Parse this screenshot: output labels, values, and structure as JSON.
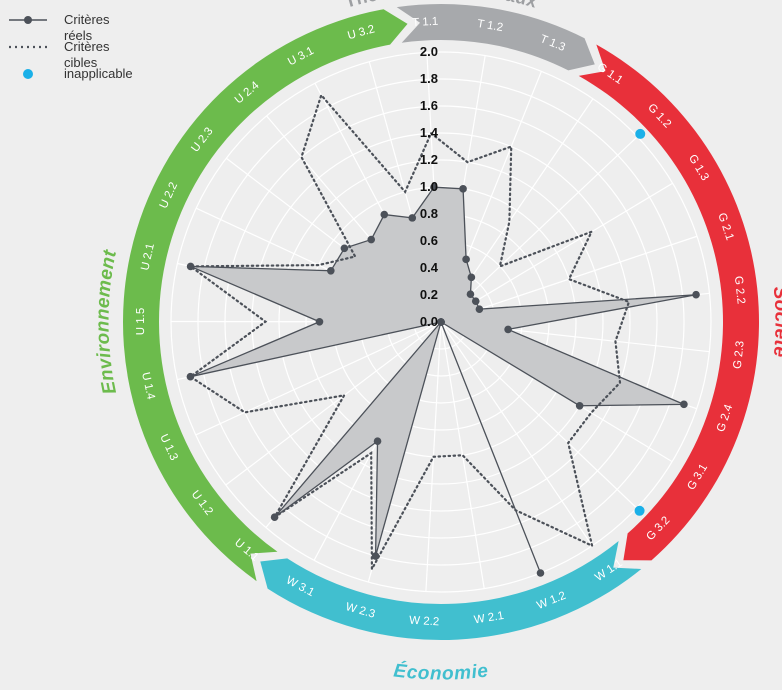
{
  "legend": {
    "actual": "Critères réels",
    "target": "Critères cibles",
    "na": "inapplicable"
  },
  "sections": [
    {
      "id": "T",
      "title": "Thèmes transversaux",
      "color": "#a7a9ac"
    },
    {
      "id": "G",
      "title": "Societe",
      "color": "#e8303a"
    },
    {
      "id": "W",
      "title": "Économie",
      "color": "#41bfcf"
    },
    {
      "id": "U",
      "title": "Environnement",
      "color": "#6cbb4c"
    }
  ],
  "colors": {
    "actual_line": "#4c5159",
    "actual_fill": "#c8c9cb",
    "target_line": "#4c5159",
    "na_dot": "#1ab0e8",
    "grid": "#ffffff"
  },
  "chart_data": {
    "type": "radar",
    "rlim": [
      0,
      2.0
    ],
    "r_ticks": [
      "0.0",
      "0.2",
      "0.4",
      "0.6",
      "0.8",
      "1.0",
      "1.2",
      "1.4",
      "1.6",
      "1.8",
      "2.0"
    ],
    "grid": true,
    "legend_position": "top-left",
    "categories": [
      "T 1.1",
      "T 1.2",
      "T 1.3",
      "G 1.1",
      "G 1.2",
      "G 1.3",
      "G 2.1",
      "G 2.2",
      "G 2.3",
      "G 2.4",
      "G 3.1",
      "G 3.2",
      "W 1.1",
      "W 1.2",
      "W 2.1",
      "W 2.2",
      "W 2.3",
      "W 3.1",
      "U 1.1",
      "U 1.2",
      "U 1.3",
      "U 1.4",
      "U 1.5",
      "U 2.1",
      "U 2.2",
      "U 2.3",
      "U 2.4",
      "U 3.1",
      "U 3.2"
    ],
    "category_section": [
      "T",
      "T",
      "T",
      "G",
      "G",
      "G",
      "G",
      "G",
      "G",
      "G",
      "G",
      "G",
      "W",
      "W",
      "W",
      "W",
      "W",
      "W",
      "U",
      "U",
      "U",
      "U",
      "U",
      "U",
      "U",
      "U",
      "U",
      "U",
      "U"
    ],
    "series": [
      {
        "name": "Critères réels",
        "style": "solid-filled",
        "values": [
          1.0,
          1.0,
          0.5,
          0.4,
          0.3,
          0.3,
          0.3,
          1.9,
          0.5,
          1.9,
          1.2,
          0.0,
          0.0,
          2.0,
          0.0,
          0.0,
          1.8,
          1.0,
          1.9,
          0.0,
          0.0,
          1.9,
          0.9,
          1.9,
          0.9,
          0.9,
          0.8,
          0.9,
          0.8
        ]
      },
      {
        "name": "Critères cibles",
        "style": "dotted",
        "values": [
          1.4,
          1.2,
          1.4,
          0.9,
          0.6,
          1.3,
          1.0,
          1.4,
          1.3,
          1.4,
          1.3,
          1.3,
          2.0,
          1.5,
          1.0,
          1.0,
          1.9,
          1.1,
          1.9,
          0.9,
          1.6,
          1.9,
          1.3,
          1.9,
          1.0,
          0.8,
          1.6,
          1.9,
          1.0
        ]
      }
    ],
    "inapplicable": [
      "G 1.2",
      "G 3.2"
    ]
  }
}
